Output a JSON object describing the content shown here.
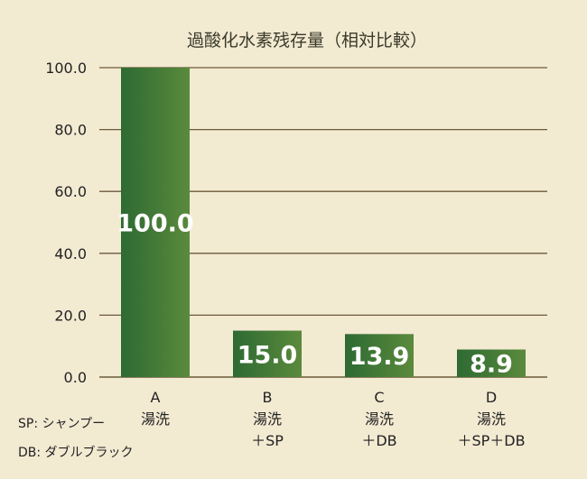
{
  "chart_data": {
    "type": "bar",
    "title": "過酸化水素残存量（相対比較）",
    "xlabel": "",
    "ylabel": "",
    "ylim": [
      0,
      100
    ],
    "yticks": [
      "0.0",
      "20.0",
      "40.0",
      "60.0",
      "80.0",
      "100.0"
    ],
    "categories": [
      {
        "lines": [
          "A",
          "湯洗"
        ]
      },
      {
        "lines": [
          "B",
          "湯洗",
          "＋SP"
        ]
      },
      {
        "lines": [
          "C",
          "湯洗",
          "＋DB"
        ]
      },
      {
        "lines": [
          "D",
          "湯洗",
          "＋SP＋DB"
        ]
      }
    ],
    "values": [
      100.0,
      15.0,
      13.9,
      8.9
    ],
    "value_labels": [
      "100.0",
      "15.0",
      "13.9",
      "8.9"
    ],
    "grid": true,
    "colors": {
      "bar_dark": "#2e6a33",
      "bar_light": "#5a8a3c",
      "grid": "#6b5a3a"
    }
  },
  "notes": [
    "SP: シャンプー",
    "DB: ダブルブラック"
  ]
}
